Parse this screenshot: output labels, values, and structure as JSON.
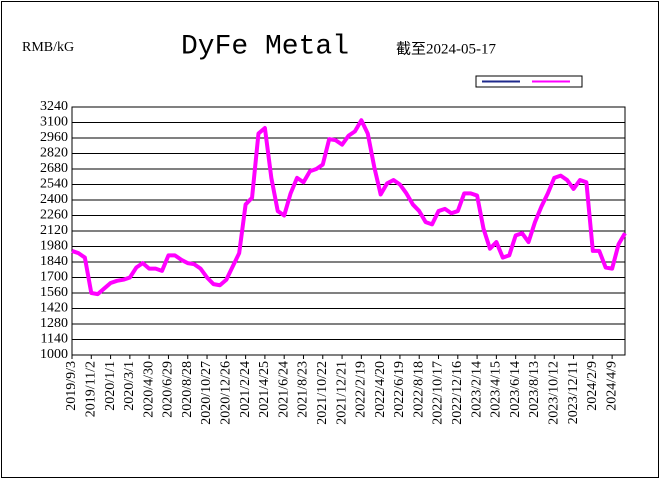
{
  "chart_data": {
    "type": "line",
    "title": "DyFe Metal",
    "subtitle": "截至2024-05-17",
    "y_label": "RMB/kG",
    "categories": [
      "2019/9/3",
      null,
      null,
      "2019/11/2",
      null,
      null,
      "2020/1/1",
      null,
      null,
      "2020/3/1",
      null,
      null,
      "2020/4/30",
      null,
      null,
      "2020/6/29",
      null,
      null,
      "2020/8/28",
      null,
      null,
      "2020/10/27",
      null,
      null,
      "2020/12/26",
      null,
      null,
      "2021/2/24",
      null,
      null,
      "2021/4/25",
      null,
      null,
      "2021/6/24",
      null,
      null,
      "2021/8/23",
      null,
      null,
      "2021/10/22",
      null,
      null,
      "2021/12/21",
      null,
      null,
      "2022/2/19",
      null,
      null,
      "2022/4/20",
      null,
      null,
      "2022/6/19",
      null,
      null,
      "2022/8/18",
      null,
      null,
      "2022/10/17",
      null,
      null,
      "2022/12/16",
      null,
      null,
      "2023/2/14",
      null,
      null,
      "2023/4/15",
      null,
      null,
      "2023/6/14",
      null,
      null,
      "2023/8/13",
      null,
      null,
      "2023/10/12",
      null,
      null,
      "2023/12/11",
      null,
      null,
      "2024/2/9",
      null,
      null,
      "2024/4/9",
      null,
      null
    ],
    "series": [
      {
        "color": "#1f2a8c",
        "values": [
          1940,
          1920,
          1880,
          1560,
          1550,
          1600,
          1650,
          1670,
          1680,
          1700,
          1790,
          1830,
          1780,
          1780,
          1760,
          1900,
          1900,
          1860,
          1830,
          1820,
          1780,
          1700,
          1640,
          1630,
          1680,
          1800,
          1920,
          2360,
          2420,
          3000,
          3050,
          2600,
          2300,
          2260,
          2460,
          2600,
          2560,
          2660,
          2680,
          2720,
          2950,
          2940,
          2900,
          2980,
          3020,
          3120,
          3000,
          2700,
          2450,
          2550,
          2580,
          2540,
          2460,
          2360,
          2300,
          2200,
          2180,
          2300,
          2320,
          2280,
          2300,
          2460,
          2460,
          2440,
          2140,
          1960,
          2020,
          1880,
          1900,
          2080,
          2100,
          2020,
          2200,
          2340,
          2460,
          2600,
          2620,
          2580,
          2500,
          2580,
          2560,
          1940,
          1940,
          1790,
          1780,
          2000,
          2100
        ]
      },
      {
        "color": "#ff00ff",
        "values": [
          1940,
          1920,
          1880,
          1560,
          1550,
          1600,
          1650,
          1670,
          1680,
          1700,
          1790,
          1830,
          1780,
          1780,
          1760,
          1900,
          1900,
          1860,
          1830,
          1820,
          1780,
          1700,
          1640,
          1630,
          1680,
          1800,
          1920,
          2360,
          2420,
          3000,
          3050,
          2600,
          2300,
          2260,
          2460,
          2600,
          2560,
          2660,
          2680,
          2720,
          2950,
          2940,
          2900,
          2980,
          3020,
          3120,
          3000,
          2700,
          2450,
          2550,
          2580,
          2540,
          2460,
          2360,
          2300,
          2200,
          2180,
          2300,
          2320,
          2280,
          2300,
          2460,
          2460,
          2440,
          2140,
          1960,
          2020,
          1880,
          1900,
          2080,
          2100,
          2020,
          2200,
          2340,
          2460,
          2600,
          2620,
          2580,
          2500,
          2580,
          2560,
          1940,
          1940,
          1790,
          1780,
          2000,
          2100
        ]
      }
    ],
    "ylim": [
      1000,
      3240
    ],
    "yticks": [
      1000,
      1140,
      1280,
      1420,
      1560,
      1700,
      1840,
      1980,
      2120,
      2260,
      2400,
      2540,
      2680,
      2820,
      2960,
      3100,
      3240
    ],
    "grid": true,
    "legend": "top-right"
  }
}
